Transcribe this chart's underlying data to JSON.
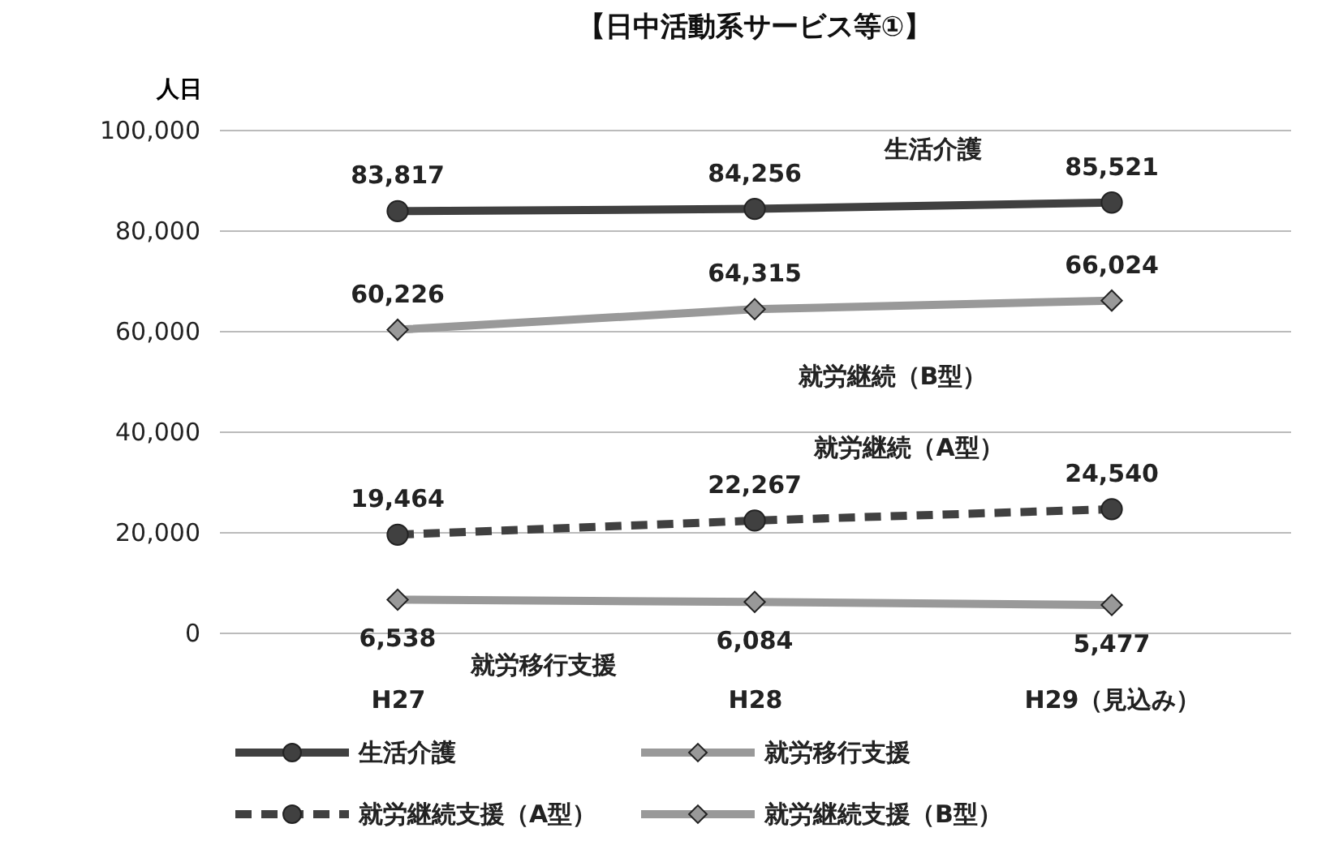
{
  "chart_data": {
    "type": "line",
    "title": "【日中活動系サービス等①】",
    "ylabel": "人日",
    "categories": [
      "H27",
      "H28",
      "H29（見込み）"
    ],
    "series": [
      {
        "name": "生活介護",
        "color": "#404040",
        "values": [
          83817,
          84256,
          85521
        ],
        "value_labels": [
          "83,817",
          "84,256",
          "85,521"
        ],
        "marker": "circle",
        "line_style": "solid"
      },
      {
        "name": "就労移行支援",
        "color": "#999999",
        "values": [
          6538,
          6084,
          5477
        ],
        "value_labels": [
          "6,538",
          "6,084",
          "5,477"
        ],
        "marker": "diamond",
        "line_style": "solid"
      },
      {
        "name": "就労継続支援（A型）",
        "color": "#404040",
        "values": [
          19464,
          22267,
          24540
        ],
        "value_labels": [
          "19,464",
          "22,267",
          "24,540"
        ],
        "marker": "circle",
        "line_style": "dashed"
      },
      {
        "name": "就労継続支援（B型）",
        "color": "#999999",
        "values": [
          60226,
          64315,
          66024
        ],
        "value_labels": [
          "60,226",
          "64,315",
          "66,024"
        ],
        "marker": "diamond",
        "line_style": "solid"
      }
    ],
    "ylim": [
      0,
      100000
    ],
    "yticks": [
      0,
      {
        "value": 20000,
        "label": "20,000"
      },
      {
        "value": 40000,
        "label": "40,000"
      },
      {
        "value": 60000,
        "label": "60,000"
      },
      {
        "value": 80000,
        "label": "80,000"
      },
      {
        "value": 100000,
        "label": "100,000"
      }
    ],
    "grid": "y",
    "legend": "bottom",
    "annotations": [
      "生活介護",
      "就労継続（B型）",
      "就労継続（A型）",
      "就労移行支援"
    ]
  }
}
